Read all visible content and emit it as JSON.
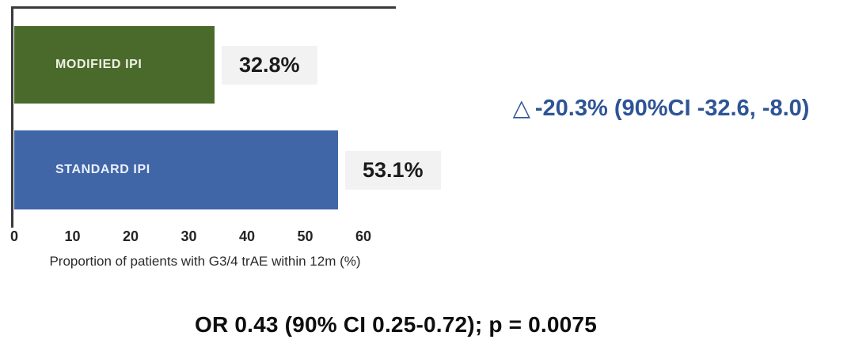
{
  "chart_data": {
    "type": "bar",
    "orientation": "horizontal",
    "categories": [
      "MODIFIED IPI",
      "STANDARD IPI"
    ],
    "values": [
      32.8,
      53.1
    ],
    "value_labels": [
      "32.8%",
      "53.1%"
    ],
    "bar_colors": [
      "#4a6a2c",
      "#4166a8"
    ],
    "bar_label_colors": [
      "#edf2e3",
      "#eaf0f9"
    ],
    "x_ticks": [
      "0",
      "10",
      "20",
      "30",
      "40",
      "50",
      "60"
    ],
    "x_tick_values": [
      0,
      10,
      20,
      30,
      40,
      50,
      60
    ],
    "xlim": [
      0,
      60
    ],
    "xlabel": "Proportion of patients with G3/4 trAE within 12m (%)",
    "ylabel": "",
    "title": "",
    "grid": false,
    "legend": "none",
    "value_chip_bg": "#f2f2f2",
    "axis_line_color": "#3a3a3a"
  },
  "annotations": {
    "delta_symbol": "△",
    "delta_text": "-20.3% (90%CI -32.6, -8.0)",
    "delta_color": "#2e5496",
    "or_line": "OR 0.43 (90% CI 0.25-0.72); p = 0.0075"
  }
}
